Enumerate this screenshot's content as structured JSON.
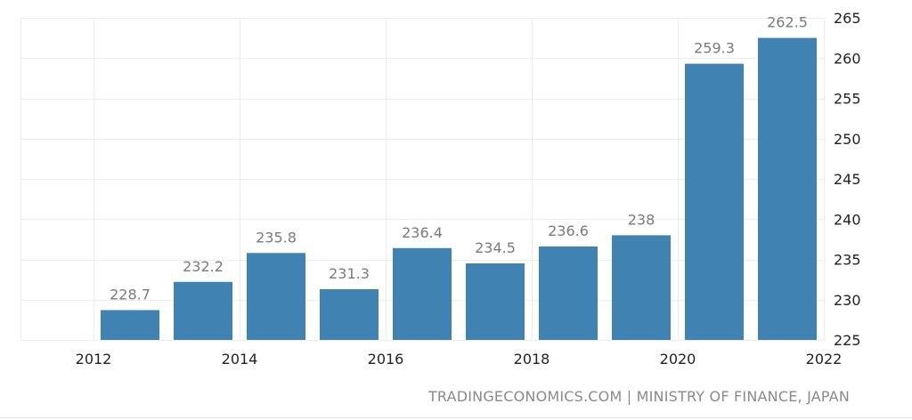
{
  "chart_data": {
    "type": "bar",
    "categories": [
      "2012",
      "2013",
      "2014",
      "2015",
      "2016",
      "2017",
      "2018",
      "2019",
      "2020",
      "2021"
    ],
    "values": [
      228.7,
      232.2,
      235.8,
      231.3,
      236.4,
      234.5,
      236.6,
      238,
      259.3,
      262.5
    ],
    "value_labels": [
      "228.7",
      "232.2",
      "235.8",
      "231.3",
      "236.4",
      "234.5",
      "236.6",
      "238",
      "259.3",
      "262.5"
    ],
    "x_ticks": [
      "2012",
      "2014",
      "2016",
      "2018",
      "2020",
      "2022"
    ],
    "x_tick_values": [
      2012,
      2014,
      2016,
      2018,
      2020,
      2022
    ],
    "y_ticks": [
      "225",
      "230",
      "235",
      "240",
      "245",
      "250",
      "255",
      "260",
      "265"
    ],
    "y_tick_values": [
      225,
      230,
      235,
      240,
      245,
      250,
      255,
      260,
      265
    ],
    "ylim": [
      225,
      265
    ],
    "xlim": [
      2011,
      2022
    ],
    "y_axis_side": "right",
    "grid": true,
    "bar_color": "#4083b2",
    "label_color": "#7a7a7a",
    "grid_color": "#ececec",
    "title": "",
    "xlabel": "",
    "ylabel": ""
  },
  "footer": {
    "source": "TRADINGECONOMICS.COM | MINISTRY OF FINANCE, JAPAN"
  }
}
